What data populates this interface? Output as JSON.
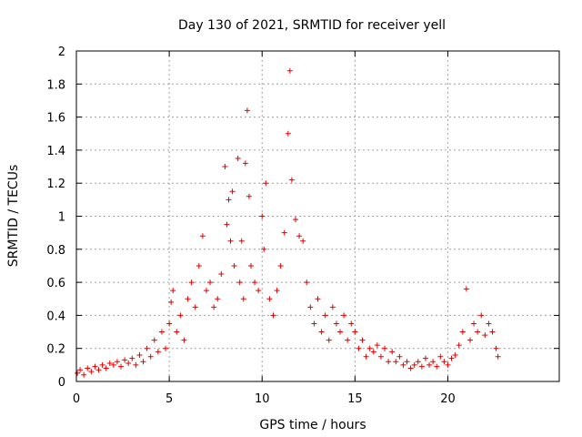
{
  "chart_data": {
    "type": "scatter",
    "title": "Day 130 of 2021, SRMTID for receiver yell",
    "xlabel": "GPS time / hours",
    "ylabel": "SRMTID / TECUs",
    "xlim": [
      0,
      26
    ],
    "ylim": [
      0,
      2
    ],
    "x_ticks": [
      0,
      5,
      10,
      15,
      20
    ],
    "x_tick_labels": [
      "0",
      "5",
      "10",
      "15",
      "20"
    ],
    "y_ticks": [
      0,
      0.2,
      0.4,
      0.6,
      0.8,
      1,
      1.2,
      1.4,
      1.6,
      1.8,
      2
    ],
    "y_tick_labels": [
      "0",
      "0.2",
      "0.4",
      "0.6",
      "0.8",
      "1",
      "1.2",
      "1.4",
      "1.6",
      "1.8",
      "2"
    ],
    "grid": true,
    "marker": "plus",
    "series": [
      {
        "name": "SRMTID",
        "color": "#e00000",
        "points": [
          [
            0.05,
            0.05
          ],
          [
            0.2,
            0.07
          ],
          [
            0.4,
            0.04
          ],
          [
            0.6,
            0.08
          ],
          [
            0.8,
            0.06
          ],
          [
            1.0,
            0.09
          ],
          [
            1.2,
            0.07
          ],
          [
            1.4,
            0.1
          ],
          [
            1.6,
            0.08
          ],
          [
            1.8,
            0.11
          ],
          [
            2.0,
            0.1
          ],
          [
            2.2,
            0.12
          ],
          [
            2.4,
            0.09
          ],
          [
            2.6,
            0.13
          ],
          [
            2.8,
            0.11
          ],
          [
            3.0,
            0.14
          ],
          [
            3.2,
            0.1
          ],
          [
            3.4,
            0.16
          ],
          [
            3.6,
            0.12
          ],
          [
            3.8,
            0.2
          ],
          [
            4.0,
            0.15
          ],
          [
            4.2,
            0.25
          ],
          [
            4.4,
            0.18
          ],
          [
            4.6,
            0.3
          ],
          [
            4.8,
            0.2
          ],
          [
            5.0,
            0.35
          ],
          [
            5.1,
            0.48
          ],
          [
            5.2,
            0.55
          ],
          [
            5.4,
            0.3
          ],
          [
            5.6,
            0.4
          ],
          [
            5.8,
            0.25
          ],
          [
            6.0,
            0.5
          ],
          [
            6.2,
            0.6
          ],
          [
            6.4,
            0.45
          ],
          [
            6.6,
            0.7
          ],
          [
            6.8,
            0.88
          ],
          [
            7.0,
            0.55
          ],
          [
            7.2,
            0.6
          ],
          [
            7.4,
            0.45
          ],
          [
            7.6,
            0.5
          ],
          [
            7.8,
            0.65
          ],
          [
            8.0,
            1.3
          ],
          [
            8.1,
            0.95
          ],
          [
            8.2,
            1.1
          ],
          [
            8.3,
            0.85
          ],
          [
            8.4,
            1.15
          ],
          [
            8.5,
            0.7
          ],
          [
            8.7,
            1.35
          ],
          [
            8.8,
            0.6
          ],
          [
            8.9,
            0.85
          ],
          [
            9.0,
            0.5
          ],
          [
            9.1,
            1.32
          ],
          [
            9.2,
            1.64
          ],
          [
            9.3,
            1.12
          ],
          [
            9.4,
            0.7
          ],
          [
            9.6,
            0.6
          ],
          [
            9.8,
            0.55
          ],
          [
            10.0,
            1.0
          ],
          [
            10.1,
            0.8
          ],
          [
            10.2,
            1.2
          ],
          [
            10.4,
            0.5
          ],
          [
            10.6,
            0.4
          ],
          [
            10.8,
            0.55
          ],
          [
            11.0,
            0.7
          ],
          [
            11.2,
            0.9
          ],
          [
            11.4,
            1.5
          ],
          [
            11.5,
            1.88
          ],
          [
            11.6,
            1.22
          ],
          [
            11.8,
            0.98
          ],
          [
            12.0,
            0.88
          ],
          [
            12.2,
            0.85
          ],
          [
            12.4,
            0.6
          ],
          [
            12.6,
            0.45
          ],
          [
            12.8,
            0.35
          ],
          [
            13.0,
            0.5
          ],
          [
            13.2,
            0.3
          ],
          [
            13.4,
            0.4
          ],
          [
            13.6,
            0.25
          ],
          [
            13.8,
            0.45
          ],
          [
            14.0,
            0.35
          ],
          [
            14.2,
            0.3
          ],
          [
            14.4,
            0.4
          ],
          [
            14.6,
            0.25
          ],
          [
            14.8,
            0.35
          ],
          [
            15.0,
            0.3
          ],
          [
            15.2,
            0.2
          ],
          [
            15.4,
            0.25
          ],
          [
            15.6,
            0.15
          ],
          [
            15.8,
            0.2
          ],
          [
            16.0,
            0.18
          ],
          [
            16.2,
            0.22
          ],
          [
            16.4,
            0.15
          ],
          [
            16.6,
            0.2
          ],
          [
            16.8,
            0.12
          ],
          [
            17.0,
            0.18
          ],
          [
            17.2,
            0.12
          ],
          [
            17.4,
            0.15
          ],
          [
            17.6,
            0.1
          ],
          [
            17.8,
            0.12
          ],
          [
            18.0,
            0.08
          ],
          [
            18.2,
            0.1
          ],
          [
            18.4,
            0.12
          ],
          [
            18.6,
            0.09
          ],
          [
            18.8,
            0.14
          ],
          [
            19.0,
            0.1
          ],
          [
            19.2,
            0.12
          ],
          [
            19.4,
            0.09
          ],
          [
            19.6,
            0.15
          ],
          [
            19.8,
            0.12
          ],
          [
            20.0,
            0.1
          ],
          [
            20.2,
            0.14
          ],
          [
            20.4,
            0.16
          ],
          [
            20.6,
            0.22
          ],
          [
            20.8,
            0.3
          ],
          [
            21.0,
            0.56
          ],
          [
            21.2,
            0.25
          ],
          [
            21.4,
            0.35
          ],
          [
            21.6,
            0.3
          ],
          [
            21.8,
            0.4
          ],
          [
            22.0,
            0.28
          ],
          [
            22.2,
            0.35
          ],
          [
            22.4,
            0.3
          ],
          [
            22.6,
            0.2
          ],
          [
            22.7,
            0.15
          ]
        ]
      }
    ]
  }
}
